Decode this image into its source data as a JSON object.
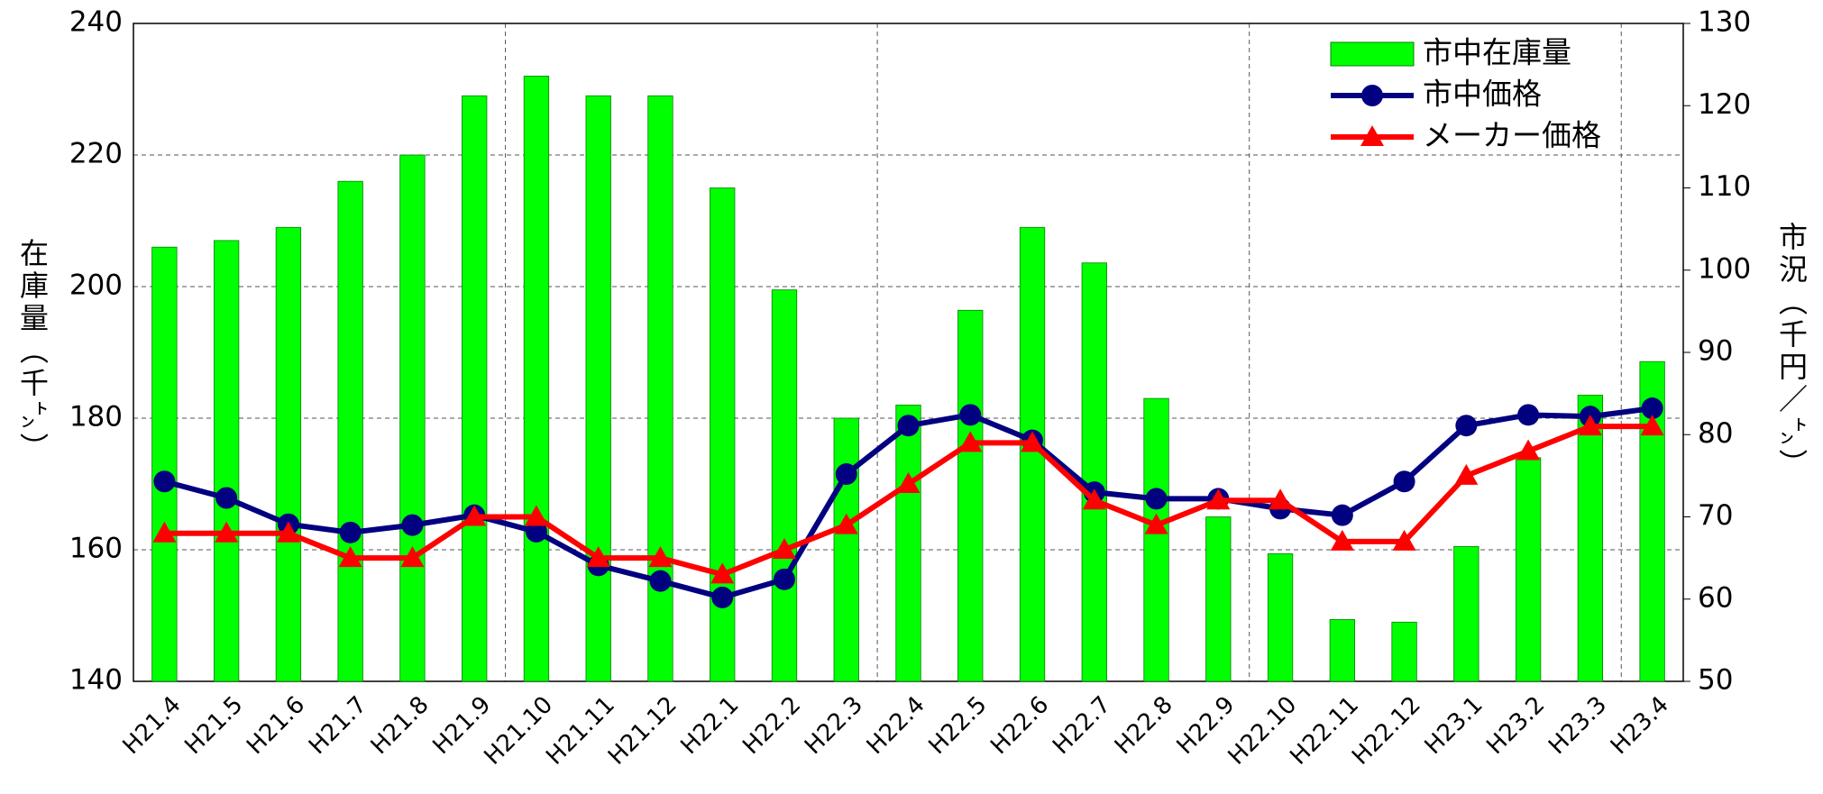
{
  "chart_data": {
    "type": "bar_line",
    "y_label": "在庫量（千㌧）",
    "y2_label": "市況（千円／㌧）",
    "categories": [
      "H21.4",
      "H21.5",
      "H21.6",
      "H21.7",
      "H21.8",
      "H21.9",
      "H21.10",
      "H21.11",
      "H21.12",
      "H22.1",
      "H22.2",
      "H22.3",
      "H22.4",
      "H22.5",
      "H22.6",
      "H22.7",
      "H22.8",
      "H22.9",
      "H22.10",
      "H22.11",
      "H22.12",
      "H23.1",
      "H23.2",
      "H23.3",
      "H23.4"
    ],
    "series": [
      {
        "name": "市中在庫量",
        "type": "bar",
        "color": "#00ff00",
        "axis": "y",
        "values": [
          206,
          207,
          209,
          216,
          220,
          229,
          232,
          229,
          229,
          215,
          199.5,
          180,
          182,
          196.4,
          209,
          203.6,
          183,
          165,
          159.4,
          149.4,
          149,
          160.5,
          174,
          183.5,
          188.6
        ]
      },
      {
        "name": "市中価格",
        "type": "line",
        "marker": "circle",
        "color": "#000080",
        "axis": "y2",
        "values": [
          74.3,
          72.3,
          69.1,
          68.1,
          69,
          70.2,
          68.2,
          64.1,
          62.2,
          60.2,
          62.4,
          75.2,
          81.1,
          82.4,
          79.3,
          73,
          72.2,
          72.2,
          71,
          70.2,
          74.3,
          81.1,
          82.4,
          82.2,
          83.2
        ]
      },
      {
        "name": "メーカー価格",
        "type": "line",
        "marker": "triangle",
        "color": "#ff0000",
        "axis": "y2",
        "values": [
          68,
          68,
          68,
          65,
          65,
          70,
          70,
          65,
          65,
          63,
          66,
          69,
          74,
          79,
          79,
          72,
          69,
          72,
          72,
          67,
          67,
          75,
          78,
          81,
          81
        ]
      }
    ],
    "ylim": [
      140,
      240
    ],
    "yticks": [
      140,
      160,
      180,
      200,
      220,
      240
    ],
    "y2lim": [
      50,
      130
    ],
    "y2ticks": [
      50,
      60,
      70,
      80,
      90,
      100,
      110,
      120,
      130
    ],
    "grid": true,
    "legend": "upper right"
  }
}
